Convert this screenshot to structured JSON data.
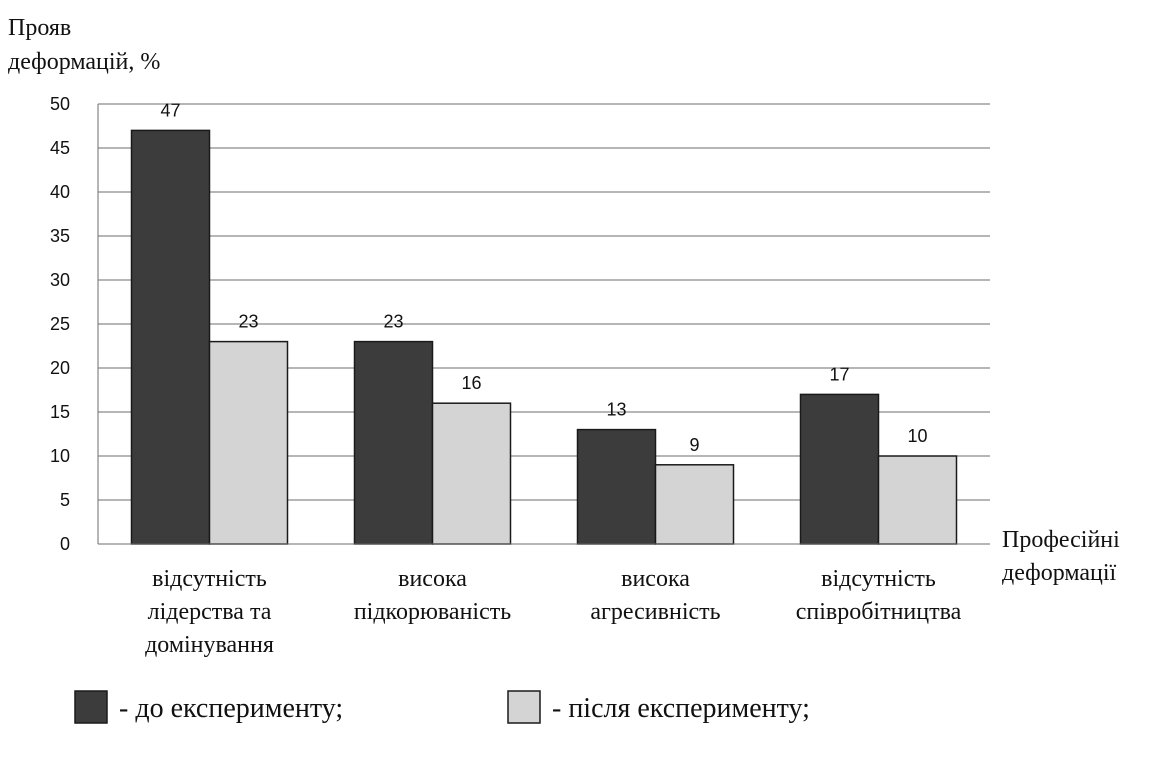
{
  "chart_data": {
    "type": "bar",
    "ylabel": [
      "Прояв",
      "деформацій, %"
    ],
    "xlabel": [
      "Професійні",
      "деформації"
    ],
    "ylim": [
      0,
      50
    ],
    "yticks": [
      0,
      5,
      10,
      15,
      20,
      25,
      30,
      35,
      40,
      45,
      50
    ],
    "grid": true,
    "categories": [
      [
        "відсутність",
        "лідерства та",
        "домінування"
      ],
      [
        "висока",
        "підкорюваність"
      ],
      [
        "висока",
        "агресивність"
      ],
      [
        "відсутність",
        "співробітництва"
      ]
    ],
    "series": [
      {
        "name": "- до експерименту;",
        "values": [
          47,
          23,
          13,
          17
        ],
        "color": "#3c3c3c"
      },
      {
        "name": "- після експерименту;",
        "values": [
          23,
          16,
          9,
          10
        ],
        "color": "#d4d4d4"
      }
    ],
    "legend_position": "bottom"
  }
}
